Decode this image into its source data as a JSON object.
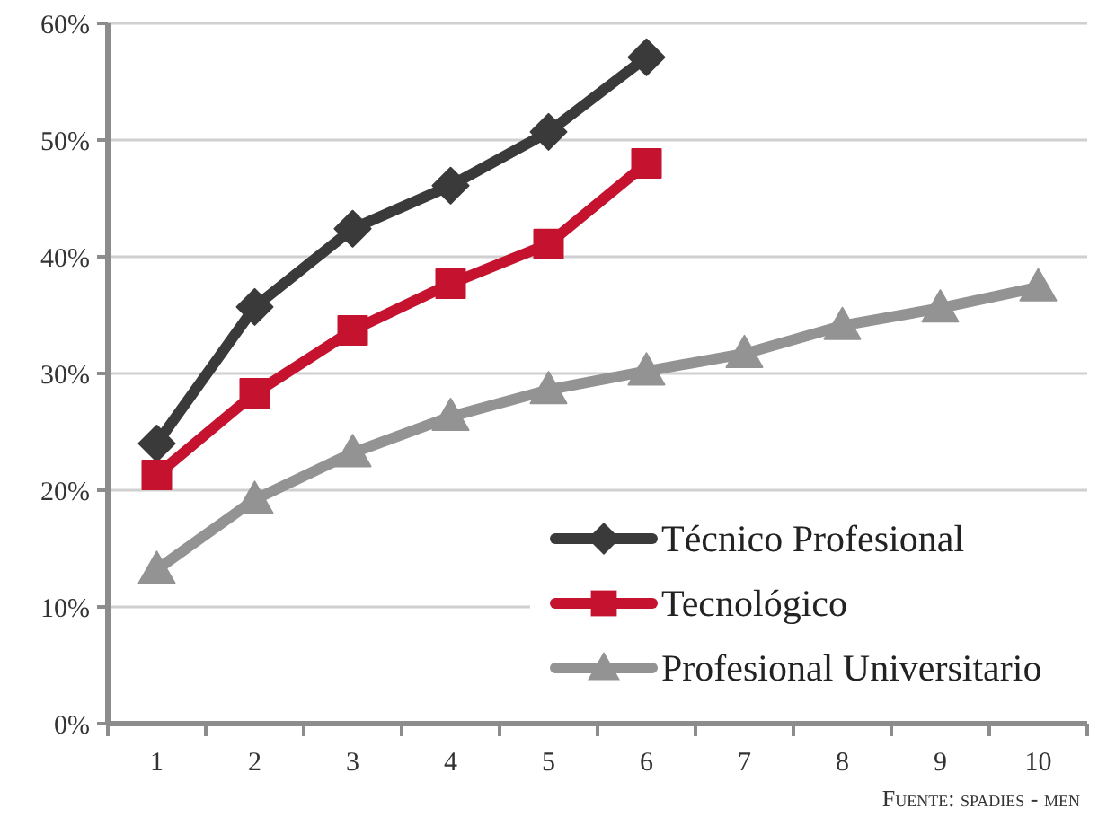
{
  "chart_data": {
    "type": "line",
    "categories": [
      "1",
      "2",
      "3",
      "4",
      "5",
      "6",
      "7",
      "8",
      "9",
      "10"
    ],
    "series": [
      {
        "name": "Técnico Profesional",
        "color": "#3a3a3a",
        "marker": "diamond",
        "values": [
          24,
          35.7,
          42.4,
          46.1,
          50.7,
          57.1,
          null,
          null,
          null,
          null
        ]
      },
      {
        "name": "Tecnológico",
        "color": "#c4122f",
        "marker": "square",
        "values": [
          21.3,
          28.3,
          33.7,
          37.7,
          41.1,
          48,
          null,
          null,
          null,
          null
        ]
      },
      {
        "name": "Profesional Universitario",
        "color": "#939393",
        "marker": "triangle",
        "values": [
          13.2,
          19.2,
          23.2,
          26.3,
          28.6,
          30.2,
          31.7,
          34.1,
          35.6,
          37.4
        ]
      }
    ],
    "ylim": [
      0,
      60
    ],
    "yticks": [
      {
        "value": 0,
        "label": "0%"
      },
      {
        "value": 10,
        "label": "10%"
      },
      {
        "value": 20,
        "label": "20%"
      },
      {
        "value": 30,
        "label": "30%"
      },
      {
        "value": 40,
        "label": "40%"
      },
      {
        "value": 50,
        "label": "50%"
      },
      {
        "value": 60,
        "label": "60%"
      }
    ],
    "grid": "y",
    "legend": "bottom right",
    "annotations": [
      "Fuente: spadies - men"
    ]
  }
}
